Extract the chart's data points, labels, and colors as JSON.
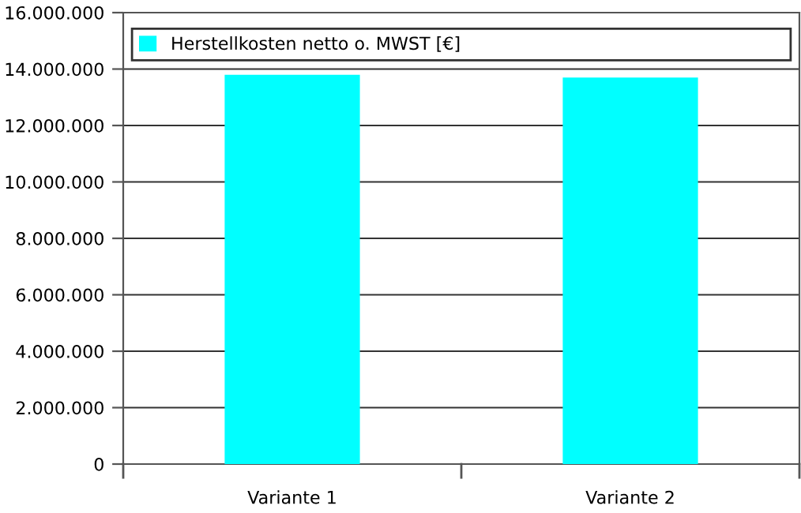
{
  "chart_data": {
    "type": "bar",
    "categories": [
      "Variante 1",
      "Variante 2"
    ],
    "series": [
      {
        "name": "Herstellkosten netto o. MWST [€]",
        "color": "#00ffff",
        "values": [
          13800000,
          13700000
        ]
      }
    ],
    "ylim": [
      0,
      16000000
    ],
    "yticks": [
      0,
      {
        "value": 2000000,
        "label": "2.000.000"
      },
      {
        "value": 4000000,
        "label": "4.000.000"
      },
      {
        "value": 6000000,
        "label": "6.000.000"
      },
      {
        "value": 8000000,
        "label": "8.000.000"
      },
      {
        "value": 10000000,
        "label": "10.000.000"
      },
      {
        "value": 12000000,
        "label": "12.000.000"
      },
      {
        "value": 14000000,
        "label": "14.000.000"
      },
      {
        "value": 16000000,
        "label": "16.000.000"
      }
    ],
    "grid": "y",
    "legend": "top"
  }
}
